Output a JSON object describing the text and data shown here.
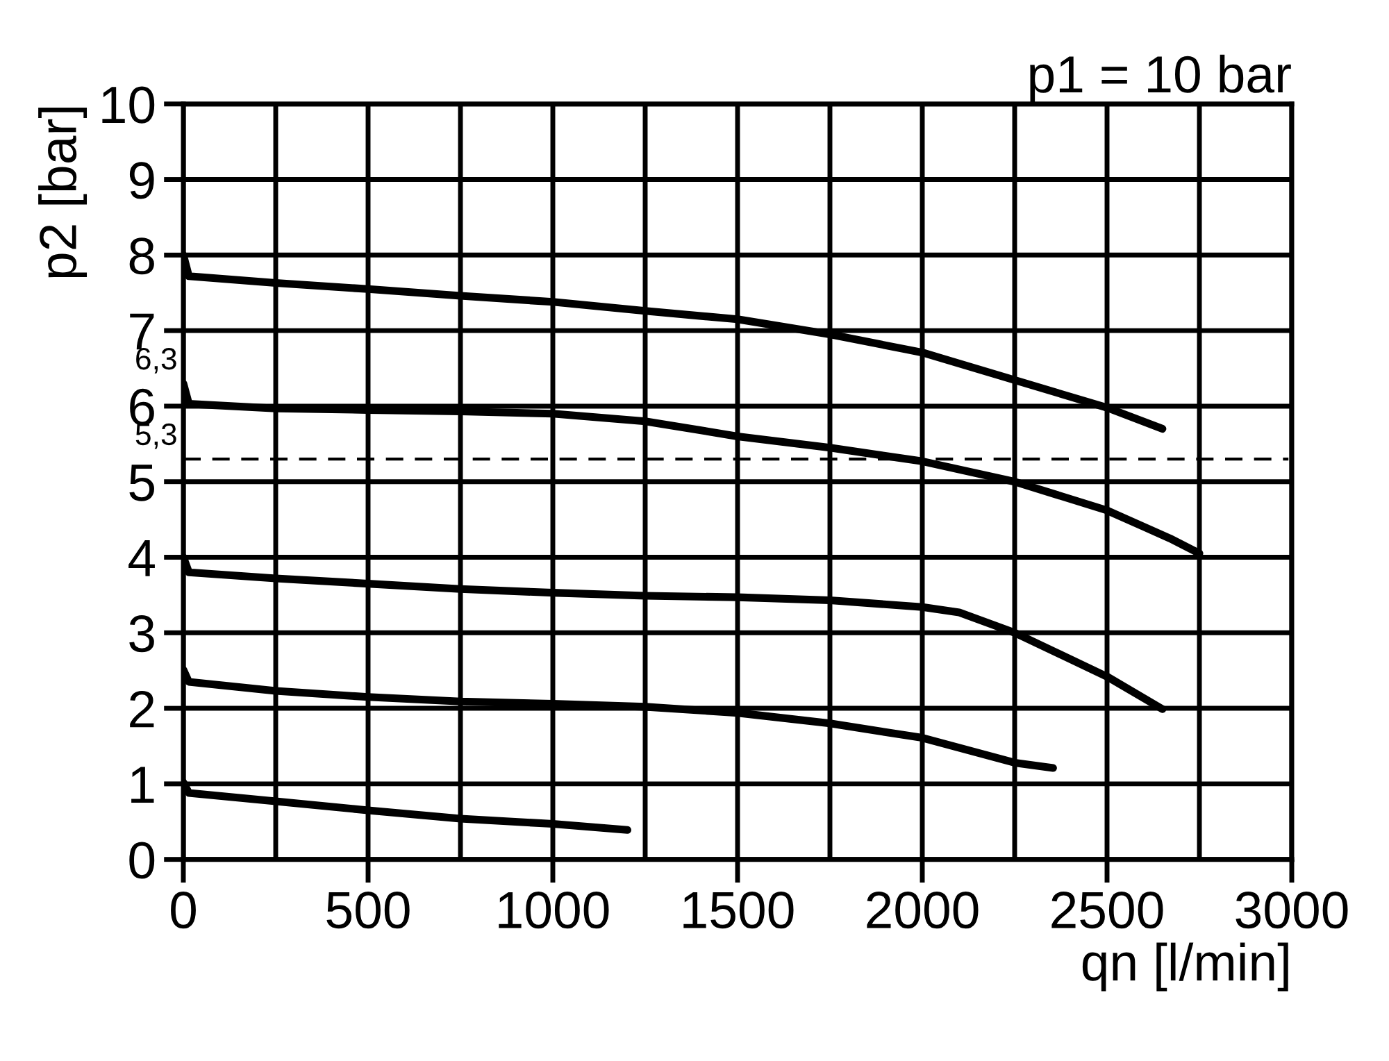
{
  "chart_data": {
    "type": "line",
    "title": "p1 = 10 bar",
    "xlabel": "qn [l/min]",
    "ylabel": "p2 [bar]",
    "xlim": [
      0,
      3000
    ],
    "ylim": [
      0,
      10
    ],
    "xticks": [
      0,
      {
        "value": 250,
        "label": null
      },
      500,
      {
        "value": 750,
        "label": null
      },
      1000,
      {
        "value": 1250,
        "label": null
      },
      1500,
      {
        "value": 1750,
        "label": null
      },
      2000,
      {
        "value": 2250,
        "label": null
      },
      2500,
      {
        "value": 2750,
        "label": null
      },
      3000
    ],
    "yticks": [
      0,
      1,
      2,
      3,
      4,
      5,
      6,
      7,
      8,
      9,
      10
    ],
    "grid": true,
    "marker": "none",
    "line_style": "solid",
    "series": [
      {
        "color": "#000000",
        "x": [
          0,
          15,
          250,
          500,
          750,
          1000,
          1250,
          1500,
          1750,
          2000,
          2500,
          2650
        ],
        "values": [
          8.0,
          7.72,
          7.63,
          7.55,
          7.46,
          7.38,
          7.26,
          7.15,
          6.95,
          6.71,
          5.98,
          5.7
        ]
      },
      {
        "color": "#000000",
        "x": [
          0,
          15,
          250,
          500,
          750,
          1000,
          1250,
          1500,
          1750,
          2000,
          2250,
          2500,
          2670,
          2750
        ],
        "values": [
          6.3,
          6.03,
          5.97,
          5.95,
          5.93,
          5.9,
          5.8,
          5.6,
          5.45,
          5.27,
          5.0,
          4.62,
          4.25,
          4.05
        ]
      },
      {
        "color": "#000000",
        "x": [
          0,
          15,
          250,
          500,
          750,
          1000,
          1250,
          1500,
          1750,
          2000,
          2100,
          2250,
          2500,
          2650
        ],
        "values": [
          4.0,
          3.8,
          3.72,
          3.65,
          3.58,
          3.53,
          3.49,
          3.47,
          3.43,
          3.34,
          3.27,
          3.0,
          2.42,
          1.99
        ]
      },
      {
        "color": "#000000",
        "x": [
          0,
          15,
          250,
          500,
          750,
          1000,
          1250,
          1500,
          1750,
          2000,
          2250,
          2354
        ],
        "values": [
          2.51,
          2.35,
          2.23,
          2.15,
          2.09,
          2.06,
          2.02,
          1.94,
          1.8,
          1.61,
          1.28,
          1.21
        ]
      },
      {
        "color": "#000000",
        "x": [
          0,
          15,
          250,
          500,
          750,
          1000,
          1202
        ],
        "values": [
          1.02,
          0.88,
          0.77,
          0.65,
          0.54,
          0.47,
          0.39
        ]
      }
    ],
    "ref_lines": [
      {
        "axis": "y",
        "value": 5.3,
        "label": "5,3",
        "color": "#000000",
        "line_style": "dashed"
      }
    ],
    "annotations": [
      {
        "text": "6,3",
        "x": 0,
        "y": 6.3
      }
    ]
  }
}
